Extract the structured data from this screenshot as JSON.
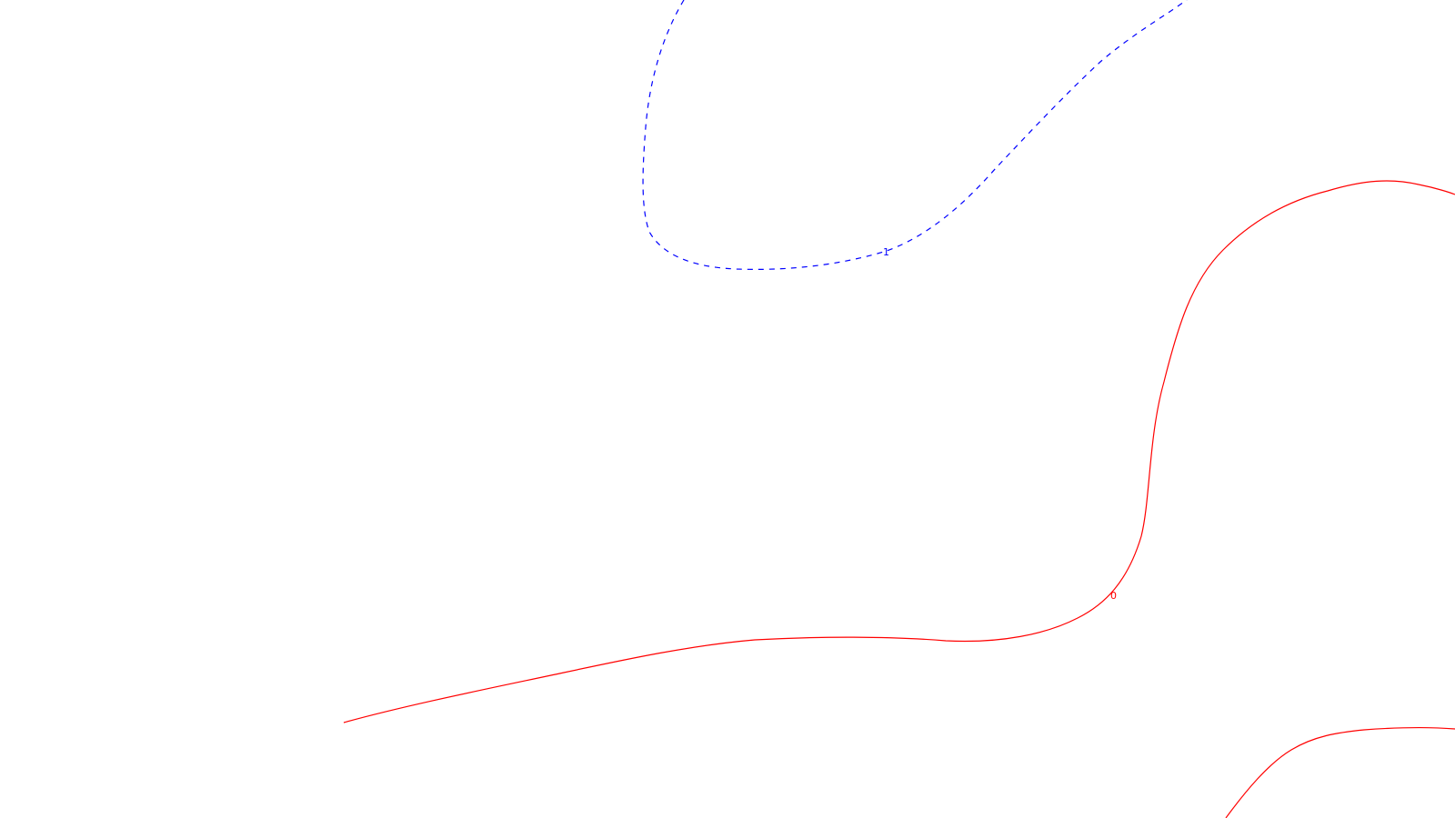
{
  "contours": [
    {
      "id": "blue-dashed",
      "color": "#0000ff",
      "style": "dashed",
      "label": "1"
    },
    {
      "id": "red-main",
      "color": "#ff0000",
      "style": "solid",
      "label": "0"
    },
    {
      "id": "red-corner",
      "color": "#ff0000",
      "style": "solid",
      "label": ""
    }
  ]
}
